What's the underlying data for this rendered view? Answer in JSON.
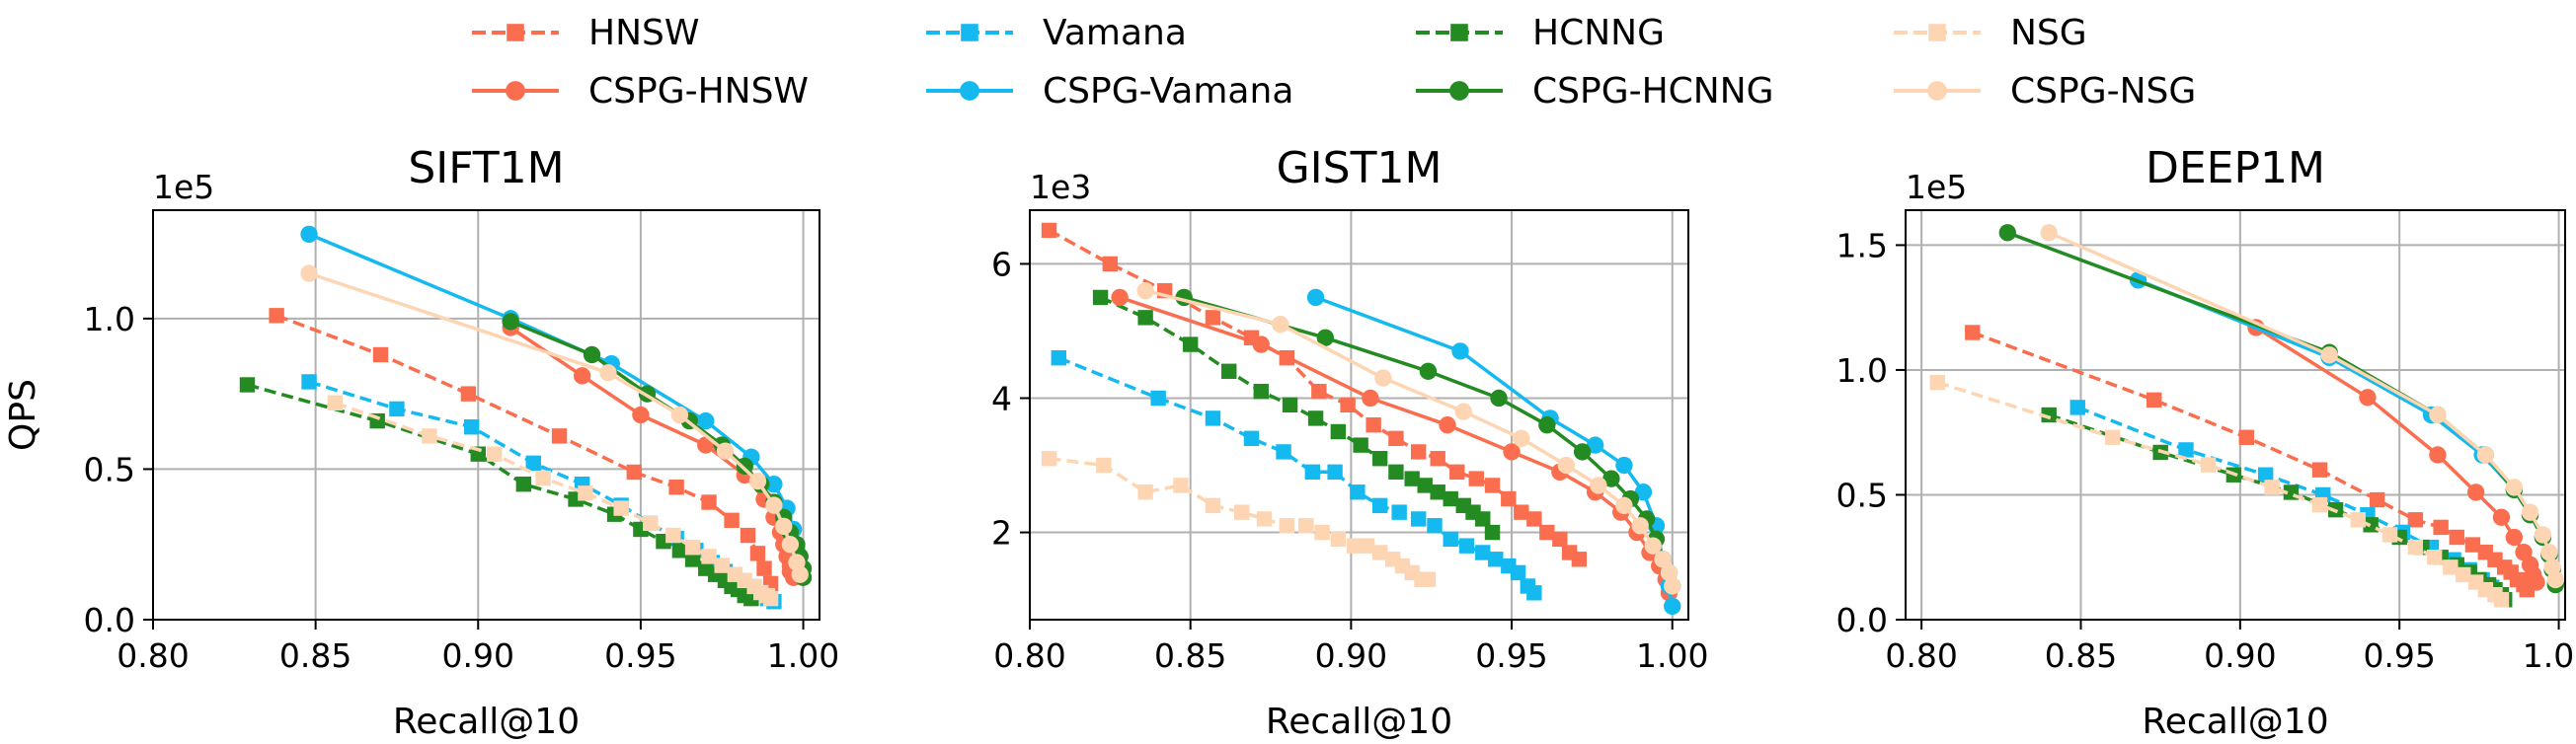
{
  "legend": {
    "placement": "top-center",
    "entries": [
      {
        "name": "HNSW",
        "color": "#fa6e4f",
        "style": "dashed",
        "marker": "square"
      },
      {
        "name": "Vamana",
        "color": "#14b9f0",
        "style": "dashed",
        "marker": "square"
      },
      {
        "name": "HCNNG",
        "color": "#238b22",
        "style": "dashed",
        "marker": "square"
      },
      {
        "name": "NSG",
        "color": "#fdd5b3",
        "style": "dashed",
        "marker": "square"
      },
      {
        "name": "CSPG-HNSW",
        "color": "#fa6e4f",
        "style": "solid",
        "marker": "circle"
      },
      {
        "name": "CSPG-Vamana",
        "color": "#14b9f0",
        "style": "solid",
        "marker": "circle"
      },
      {
        "name": "CSPG-HCNNG",
        "color": "#238b22",
        "style": "solid",
        "marker": "circle"
      },
      {
        "name": "CSPG-NSG",
        "color": "#fdd5b3",
        "style": "solid",
        "marker": "circle"
      }
    ]
  },
  "chart_data": [
    {
      "type": "line",
      "title": "SIFT1M",
      "xlabel": "Recall@10",
      "ylabel": "QPS",
      "y_offset_label": "1e5",
      "xlim": [
        0.8,
        1.005
      ],
      "ylim": [
        0.0,
        1.36
      ],
      "xticks": [
        0.8,
        0.85,
        0.9,
        0.95,
        1.0
      ],
      "xtick_labels": [
        "0.80",
        "0.85",
        "0.90",
        "0.95",
        "1.00"
      ],
      "yticks": [
        0.0,
        0.5,
        1.0
      ],
      "ytick_labels": [
        "0.0",
        "0.5",
        "1.0"
      ],
      "grid": true,
      "series": [
        {
          "name": "HNSW",
          "x": [
            0.838,
            0.87,
            0.897,
            0.925,
            0.948,
            0.961,
            0.971,
            0.978,
            0.983,
            0.986,
            0.988,
            0.99
          ],
          "y": [
            1.01,
            0.88,
            0.75,
            0.61,
            0.49,
            0.44,
            0.39,
            0.33,
            0.28,
            0.22,
            0.17,
            0.12
          ]
        },
        {
          "name": "Vamana",
          "x": [
            0.848,
            0.875,
            0.898,
            0.917,
            0.932,
            0.944,
            0.953,
            0.961,
            0.967,
            0.972,
            0.976,
            0.98,
            0.984,
            0.987,
            0.989,
            0.991
          ],
          "y": [
            0.79,
            0.7,
            0.64,
            0.52,
            0.45,
            0.38,
            0.32,
            0.27,
            0.23,
            0.19,
            0.16,
            0.13,
            0.11,
            0.09,
            0.07,
            0.06
          ]
        },
        {
          "name": "HCNNG",
          "x": [
            0.829,
            0.869,
            0.9,
            0.914,
            0.93,
            0.942,
            0.95,
            0.957,
            0.962,
            0.966,
            0.97,
            0.973,
            0.976,
            0.978,
            0.98,
            0.982,
            0.984
          ],
          "y": [
            0.78,
            0.66,
            0.55,
            0.45,
            0.4,
            0.35,
            0.3,
            0.26,
            0.23,
            0.2,
            0.17,
            0.15,
            0.13,
            0.11,
            0.1,
            0.08,
            0.07
          ]
        },
        {
          "name": "NSG",
          "x": [
            0.856,
            0.885,
            0.905,
            0.92,
            0.933,
            0.944,
            0.953,
            0.96,
            0.966,
            0.971,
            0.975,
            0.979,
            0.982,
            0.985,
            0.987,
            0.989,
            0.99
          ],
          "y": [
            0.72,
            0.61,
            0.55,
            0.47,
            0.42,
            0.37,
            0.32,
            0.28,
            0.24,
            0.21,
            0.18,
            0.15,
            0.13,
            0.11,
            0.09,
            0.08,
            0.07
          ]
        },
        {
          "name": "CSPG-HNSW",
          "x": [
            0.91,
            0.932,
            0.95,
            0.97,
            0.982,
            0.988,
            0.991,
            0.993,
            0.994,
            0.995,
            0.996,
            0.996,
            0.997
          ],
          "y": [
            0.97,
            0.81,
            0.68,
            0.58,
            0.48,
            0.4,
            0.34,
            0.29,
            0.25,
            0.21,
            0.18,
            0.16,
            0.14
          ]
        },
        {
          "name": "CSPG-Vamana",
          "x": [
            0.848,
            0.91,
            0.941,
            0.97,
            0.984,
            0.991,
            0.995,
            0.997,
            0.998,
            0.999
          ],
          "y": [
            1.28,
            1.0,
            0.85,
            0.66,
            0.54,
            0.45,
            0.37,
            0.3,
            0.24,
            0.18
          ]
        },
        {
          "name": "CSPG-HCNNG",
          "x": [
            0.91,
            0.935,
            0.952,
            0.965,
            0.975,
            0.982,
            0.987,
            0.991,
            0.994,
            0.996,
            0.998,
            0.999,
            1.0,
            1.0
          ],
          "y": [
            0.99,
            0.88,
            0.75,
            0.66,
            0.58,
            0.51,
            0.45,
            0.39,
            0.34,
            0.29,
            0.25,
            0.21,
            0.17,
            0.14
          ]
        },
        {
          "name": "CSPG-NSG",
          "x": [
            0.848,
            0.94,
            0.962,
            0.976,
            0.986,
            0.991,
            0.994,
            0.996,
            0.998,
            0.999
          ],
          "y": [
            1.15,
            0.82,
            0.68,
            0.56,
            0.46,
            0.38,
            0.31,
            0.25,
            0.19,
            0.15
          ]
        }
      ]
    },
    {
      "type": "line",
      "title": "GIST1M",
      "xlabel": "Recall@10",
      "ylabel": "",
      "y_offset_label": "1e3",
      "xlim": [
        0.8,
        1.005
      ],
      "ylim": [
        0.7,
        6.8
      ],
      "xticks": [
        0.8,
        0.85,
        0.9,
        0.95,
        1.0
      ],
      "xtick_labels": [
        "0.80",
        "0.85",
        "0.90",
        "0.95",
        "1.00"
      ],
      "yticks": [
        2,
        4,
        6
      ],
      "ytick_labels": [
        "2",
        "4",
        "6"
      ],
      "grid": true,
      "series": [
        {
          "name": "HNSW",
          "x": [
            0.806,
            0.825,
            0.842,
            0.857,
            0.869,
            0.88,
            0.89,
            0.899,
            0.907,
            0.914,
            0.921,
            0.927,
            0.933,
            0.939,
            0.944,
            0.949,
            0.953,
            0.957,
            0.961,
            0.965,
            0.968,
            0.971
          ],
          "y": [
            6.5,
            6.0,
            5.6,
            5.2,
            4.9,
            4.6,
            4.1,
            3.9,
            3.6,
            3.4,
            3.2,
            3.1,
            2.9,
            2.8,
            2.7,
            2.5,
            2.3,
            2.2,
            2.0,
            1.9,
            1.7,
            1.6
          ]
        },
        {
          "name": "Vamana",
          "x": [
            0.809,
            0.84,
            0.857,
            0.869,
            0.879,
            0.888,
            0.895,
            0.902,
            0.909,
            0.915,
            0.921,
            0.926,
            0.931,
            0.936,
            0.941,
            0.945,
            0.949,
            0.952,
            0.955,
            0.957
          ],
          "y": [
            4.6,
            4.0,
            3.7,
            3.4,
            3.2,
            2.9,
            2.9,
            2.6,
            2.4,
            2.3,
            2.2,
            2.1,
            1.9,
            1.8,
            1.7,
            1.6,
            1.5,
            1.4,
            1.2,
            1.1
          ]
        },
        {
          "name": "HCNNG",
          "x": [
            0.822,
            0.836,
            0.85,
            0.862,
            0.872,
            0.881,
            0.889,
            0.896,
            0.903,
            0.909,
            0.914,
            0.919,
            0.923,
            0.927,
            0.931,
            0.935,
            0.938,
            0.941,
            0.944
          ],
          "y": [
            5.5,
            5.2,
            4.8,
            4.4,
            4.1,
            3.9,
            3.7,
            3.5,
            3.3,
            3.1,
            2.9,
            2.8,
            2.7,
            2.6,
            2.5,
            2.4,
            2.3,
            2.2,
            2.0
          ]
        },
        {
          "name": "NSG",
          "x": [
            0.806,
            0.823,
            0.836,
            0.847,
            0.857,
            0.866,
            0.873,
            0.88,
            0.886,
            0.891,
            0.896,
            0.901,
            0.905,
            0.909,
            0.913,
            0.916,
            0.919,
            0.922,
            0.924
          ],
          "y": [
            3.1,
            3.0,
            2.6,
            2.7,
            2.4,
            2.3,
            2.2,
            2.1,
            2.1,
            2.0,
            1.9,
            1.8,
            1.8,
            1.7,
            1.6,
            1.5,
            1.4,
            1.3,
            1.3
          ]
        },
        {
          "name": "CSPG-HNSW",
          "x": [
            0.828,
            0.872,
            0.906,
            0.93,
            0.95,
            0.965,
            0.976,
            0.984,
            0.989,
            0.993,
            0.996,
            0.998,
            0.999
          ],
          "y": [
            5.5,
            4.8,
            4.0,
            3.6,
            3.2,
            2.9,
            2.6,
            2.3,
            2.0,
            1.7,
            1.5,
            1.3,
            1.1
          ]
        },
        {
          "name": "CSPG-Vamana",
          "x": [
            0.889,
            0.934,
            0.962,
            0.976,
            0.985,
            0.991,
            0.995,
            0.997,
            0.999,
            1.0
          ],
          "y": [
            5.5,
            4.7,
            3.7,
            3.3,
            3.0,
            2.6,
            2.1,
            1.6,
            1.2,
            0.9
          ]
        },
        {
          "name": "CSPG-HCNNG",
          "x": [
            0.848,
            0.892,
            0.924,
            0.946,
            0.961,
            0.972,
            0.981,
            0.987,
            0.992,
            0.995,
            0.997,
            0.999,
            1.0
          ],
          "y": [
            5.5,
            4.9,
            4.4,
            4.0,
            3.6,
            3.2,
            2.8,
            2.5,
            2.2,
            1.9,
            1.6,
            1.4,
            1.2
          ]
        },
        {
          "name": "CSPG-NSG",
          "x": [
            0.836,
            0.878,
            0.91,
            0.935,
            0.953,
            0.967,
            0.977,
            0.985,
            0.99,
            0.994,
            0.997,
            0.999,
            1.0
          ],
          "y": [
            5.6,
            5.1,
            4.3,
            3.8,
            3.4,
            3.0,
            2.7,
            2.4,
            2.1,
            1.8,
            1.6,
            1.4,
            1.2
          ]
        }
      ]
    },
    {
      "type": "line",
      "title": "DEEP1M",
      "xlabel": "Recall@10",
      "ylabel": "",
      "y_offset_label": "1e5",
      "xlim": [
        0.795,
        1.002
      ],
      "ylim": [
        0.0,
        1.64
      ],
      "xticks": [
        0.8,
        0.85,
        0.9,
        0.95,
        1.0
      ],
      "xtick_labels": [
        "0.80",
        "0.85",
        "0.90",
        "0.95",
        "1.00"
      ],
      "yticks": [
        0.0,
        0.5,
        1.0,
        1.5
      ],
      "ytick_labels": [
        "0.0",
        "0.5",
        "1.0",
        "1.5"
      ],
      "grid": true,
      "series": [
        {
          "name": "HNSW",
          "x": [
            0.816,
            0.873,
            0.902,
            0.925,
            0.943,
            0.955,
            0.963,
            0.968,
            0.973,
            0.977,
            0.98,
            0.983,
            0.985,
            0.987,
            0.989,
            0.99
          ],
          "y": [
            1.15,
            0.88,
            0.73,
            0.6,
            0.48,
            0.4,
            0.37,
            0.33,
            0.3,
            0.27,
            0.24,
            0.21,
            0.19,
            0.16,
            0.14,
            0.12
          ]
        },
        {
          "name": "Vamana",
          "x": [
            0.849,
            0.883,
            0.908,
            0.926,
            0.94,
            0.951,
            0.96,
            0.967,
            0.972,
            0.976,
            0.979,
            0.981,
            0.983
          ],
          "y": [
            0.85,
            0.68,
            0.58,
            0.5,
            0.42,
            0.35,
            0.29,
            0.24,
            0.2,
            0.16,
            0.13,
            0.1,
            0.08
          ]
        },
        {
          "name": "HCNNG",
          "x": [
            0.84,
            0.875,
            0.898,
            0.916,
            0.93,
            0.941,
            0.95,
            0.957,
            0.963,
            0.968,
            0.972,
            0.975,
            0.978,
            0.98,
            0.982,
            0.983
          ],
          "y": [
            0.82,
            0.67,
            0.58,
            0.51,
            0.44,
            0.38,
            0.33,
            0.29,
            0.25,
            0.22,
            0.19,
            0.16,
            0.14,
            0.12,
            0.1,
            0.08
          ]
        },
        {
          "name": "NSG",
          "x": [
            0.805,
            0.86,
            0.89,
            0.91,
            0.925,
            0.937,
            0.947,
            0.955,
            0.961,
            0.966,
            0.97,
            0.974,
            0.977,
            0.98,
            0.982
          ],
          "y": [
            0.95,
            0.73,
            0.62,
            0.53,
            0.46,
            0.4,
            0.34,
            0.29,
            0.25,
            0.21,
            0.18,
            0.15,
            0.12,
            0.1,
            0.08
          ]
        },
        {
          "name": "CSPG-HNSW",
          "x": [
            0.905,
            0.94,
            0.962,
            0.974,
            0.982,
            0.986,
            0.989,
            0.991,
            0.992,
            0.993
          ],
          "y": [
            1.17,
            0.89,
            0.66,
            0.51,
            0.41,
            0.33,
            0.27,
            0.22,
            0.18,
            0.15
          ]
        },
        {
          "name": "CSPG-Vamana",
          "x": [
            0.868,
            0.928,
            0.96,
            0.976,
            0.986,
            0.991,
            0.995,
            0.997,
            0.998,
            0.999
          ],
          "y": [
            1.36,
            1.05,
            0.82,
            0.66,
            0.52,
            0.42,
            0.33,
            0.26,
            0.2,
            0.15
          ]
        },
        {
          "name": "CSPG-HCNNG",
          "x": [
            0.827,
            0.928,
            0.962,
            0.977,
            0.986,
            0.991,
            0.995,
            0.997,
            0.998,
            0.999
          ],
          "y": [
            1.55,
            1.07,
            0.82,
            0.66,
            0.52,
            0.42,
            0.33,
            0.26,
            0.2,
            0.14
          ]
        },
        {
          "name": "CSPG-NSG",
          "x": [
            0.84,
            0.928,
            0.962,
            0.977,
            0.986,
            0.991,
            0.995,
            0.997,
            0.998,
            0.999
          ],
          "y": [
            1.55,
            1.06,
            0.82,
            0.66,
            0.53,
            0.43,
            0.34,
            0.27,
            0.21,
            0.16
          ]
        }
      ]
    }
  ]
}
